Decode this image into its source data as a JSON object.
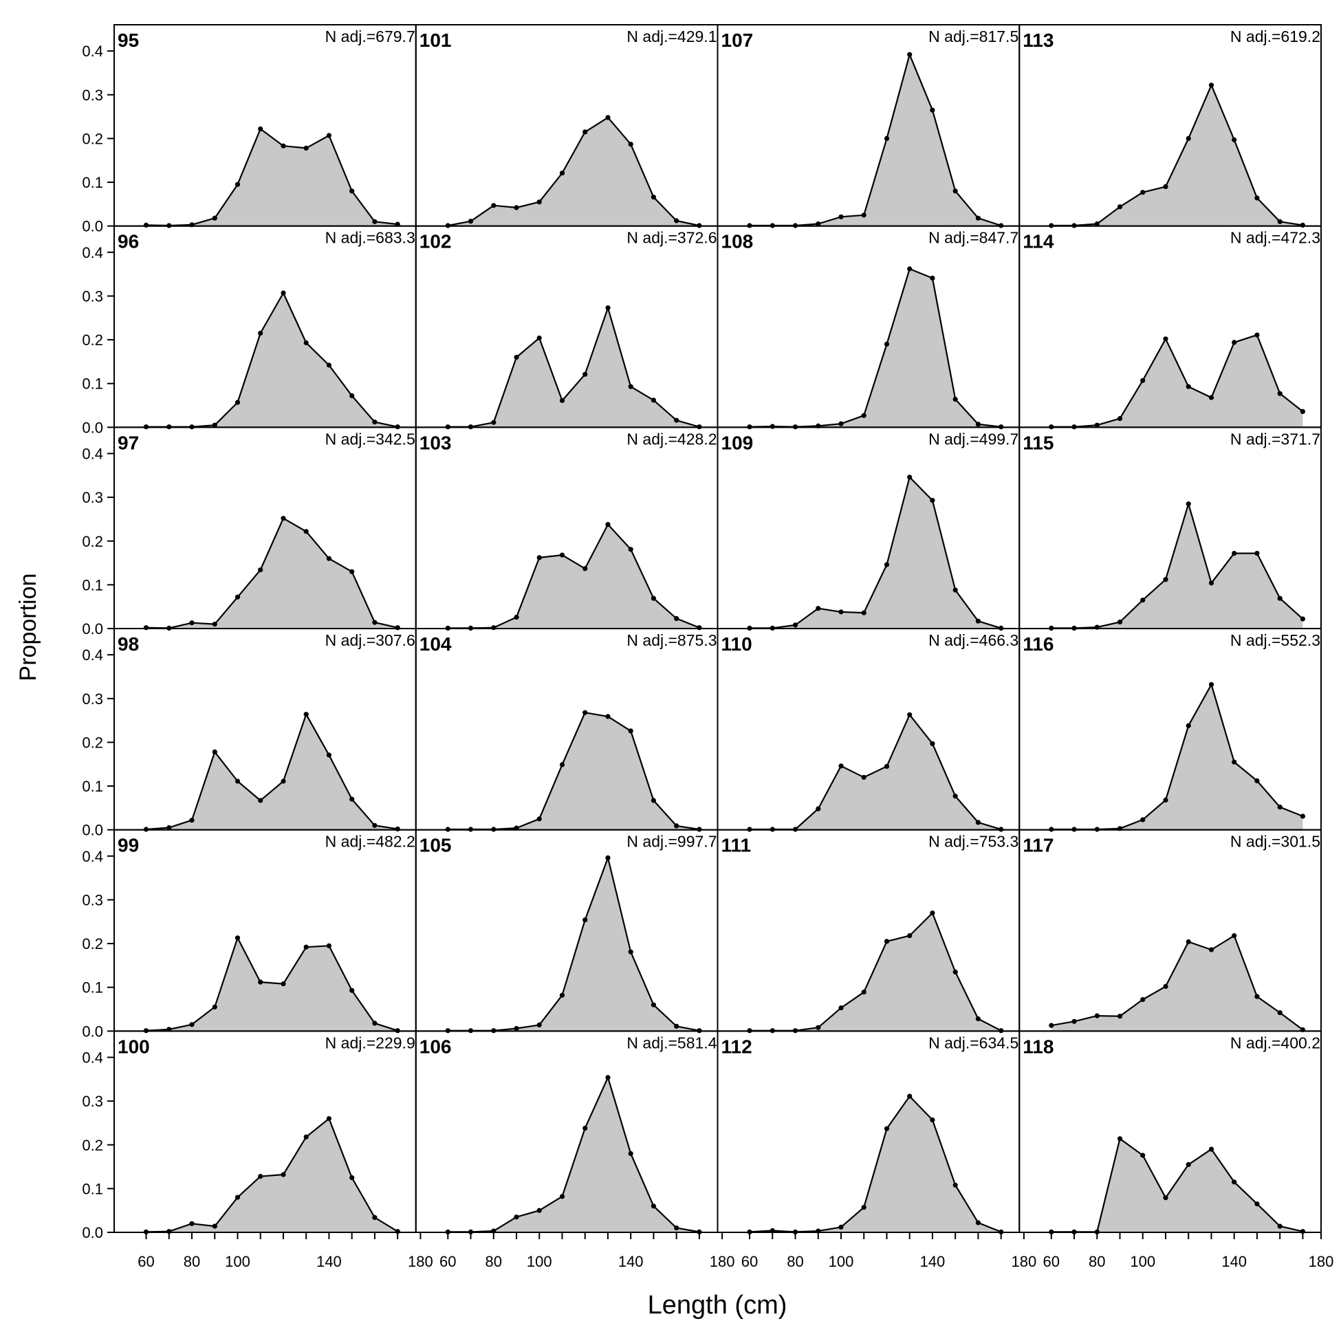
{
  "chart_data": {
    "type": "area",
    "xlabel": "Length (cm)",
    "ylabel": "Proportion",
    "xlim": [
      46,
      178
    ],
    "ylim": [
      0,
      0.46
    ],
    "x": [
      60,
      70,
      80,
      90,
      100,
      110,
      120,
      130,
      140,
      150,
      160,
      170
    ],
    "x_ticks": [
      60,
      80,
      100,
      140,
      180
    ],
    "x_tick_labels": {
      "col0": [
        "60",
        "80",
        "100",
        "140",
        "180"
      ],
      "col1": [
        "60",
        "80",
        "100",
        "140",
        "180"
      ],
      "col2": [
        "60",
        "80",
        "100",
        "140",
        "180"
      ],
      "col3": [
        "60",
        "80",
        "100",
        "140",
        "180"
      ]
    },
    "y_ticks": [
      0.0,
      0.1,
      0.2,
      0.3,
      0.4
    ],
    "y_tick_labels": [
      "0.0",
      "0.1",
      "0.2",
      "0.3",
      "0.4"
    ],
    "fill_color": "#c8c8c8",
    "line_color": "#000000",
    "layout": {
      "rows": 6,
      "cols": 4,
      "order": "column-major"
    },
    "panels": [
      {
        "title": "95",
        "n_label": "N adj.=679.7",
        "values": [
          0.002,
          0.001,
          0.003,
          0.018,
          0.095,
          0.222,
          0.183,
          0.178,
          0.207,
          0.08,
          0.01,
          0.004
        ]
      },
      {
        "title": "96",
        "n_label": "N adj.=683.3",
        "values": [
          0.001,
          0.001,
          0.001,
          0.005,
          0.057,
          0.215,
          0.307,
          0.193,
          0.142,
          0.072,
          0.012,
          0.001
        ]
      },
      {
        "title": "97",
        "n_label": "N adj.=342.5",
        "values": [
          0.002,
          0.001,
          0.013,
          0.01,
          0.072,
          0.134,
          0.252,
          0.222,
          0.16,
          0.13,
          0.014,
          0.002
        ]
      },
      {
        "title": "98",
        "n_label": "N adj.=307.6",
        "values": [
          0.001,
          0.005,
          0.022,
          0.178,
          0.111,
          0.067,
          0.111,
          0.264,
          0.171,
          0.07,
          0.01,
          0.002
        ]
      },
      {
        "title": "99",
        "n_label": "N adj.=482.2",
        "values": [
          0.001,
          0.004,
          0.015,
          0.055,
          0.213,
          0.112,
          0.108,
          0.192,
          0.195,
          0.093,
          0.018,
          0.001
        ]
      },
      {
        "title": "100",
        "n_label": "N adj.=229.9",
        "values": [
          0.001,
          0.002,
          0.02,
          0.014,
          0.08,
          0.128,
          0.132,
          0.218,
          0.26,
          0.125,
          0.034,
          0.002
        ]
      },
      {
        "title": "101",
        "n_label": "N adj.=429.1",
        "values": [
          0.001,
          0.011,
          0.047,
          0.042,
          0.055,
          0.121,
          0.215,
          0.248,
          0.187,
          0.066,
          0.012,
          0.001
        ]
      },
      {
        "title": "102",
        "n_label": "N adj.=372.6",
        "values": [
          0.001,
          0.001,
          0.011,
          0.16,
          0.204,
          0.061,
          0.121,
          0.273,
          0.093,
          0.062,
          0.016,
          0.001
        ]
      },
      {
        "title": "103",
        "n_label": "N adj.=428.2",
        "values": [
          0.001,
          0.001,
          0.002,
          0.026,
          0.162,
          0.168,
          0.137,
          0.238,
          0.181,
          0.069,
          0.023,
          0.002
        ]
      },
      {
        "title": "104",
        "n_label": "N adj.=875.3",
        "values": [
          0.001,
          0.001,
          0.001,
          0.004,
          0.025,
          0.149,
          0.268,
          0.259,
          0.226,
          0.067,
          0.009,
          0.001
        ]
      },
      {
        "title": "105",
        "n_label": "N adj.=997.7",
        "values": [
          0.001,
          0.001,
          0.001,
          0.006,
          0.014,
          0.082,
          0.254,
          0.396,
          0.181,
          0.06,
          0.011,
          0.001
        ]
      },
      {
        "title": "106",
        "n_label": "N adj.=581.4",
        "values": [
          0.001,
          0.001,
          0.003,
          0.035,
          0.05,
          0.082,
          0.238,
          0.354,
          0.18,
          0.06,
          0.01,
          0.001
        ]
      },
      {
        "title": "107",
        "n_label": "N adj.=817.5",
        "values": [
          0.001,
          0.001,
          0.001,
          0.005,
          0.021,
          0.025,
          0.2,
          0.392,
          0.265,
          0.08,
          0.018,
          0.001
        ]
      },
      {
        "title": "108",
        "n_label": "N adj.=847.7",
        "values": [
          0.001,
          0.002,
          0.001,
          0.003,
          0.008,
          0.027,
          0.19,
          0.362,
          0.341,
          0.064,
          0.007,
          0.001
        ]
      },
      {
        "title": "109",
        "n_label": "N adj.=499.7",
        "values": [
          0.001,
          0.001,
          0.008,
          0.046,
          0.038,
          0.036,
          0.146,
          0.346,
          0.293,
          0.088,
          0.017,
          0.001
        ]
      },
      {
        "title": "110",
        "n_label": "N adj.=466.3",
        "values": [
          0.001,
          0.001,
          0.001,
          0.048,
          0.146,
          0.12,
          0.145,
          0.263,
          0.197,
          0.077,
          0.017,
          0.001
        ]
      },
      {
        "title": "111",
        "n_label": "N adj.=753.3",
        "values": [
          0.001,
          0.001,
          0.001,
          0.008,
          0.053,
          0.089,
          0.205,
          0.218,
          0.27,
          0.135,
          0.028,
          0.001
        ]
      },
      {
        "title": "112",
        "n_label": "N adj.=634.5",
        "values": [
          0.001,
          0.004,
          0.001,
          0.003,
          0.012,
          0.057,
          0.237,
          0.311,
          0.257,
          0.108,
          0.022,
          0.001
        ]
      },
      {
        "title": "113",
        "n_label": "N adj.=619.2",
        "values": [
          0.001,
          0.001,
          0.005,
          0.044,
          0.077,
          0.09,
          0.2,
          0.322,
          0.197,
          0.064,
          0.01,
          0.002
        ]
      },
      {
        "title": "114",
        "n_label": "N adj.=472.3",
        "values": [
          0.001,
          0.001,
          0.005,
          0.02,
          0.107,
          0.202,
          0.093,
          0.068,
          0.194,
          0.211,
          0.077,
          0.036
        ]
      },
      {
        "title": "115",
        "n_label": "N adj.=371.7",
        "values": [
          0.001,
          0.001,
          0.003,
          0.015,
          0.065,
          0.112,
          0.285,
          0.104,
          0.172,
          0.172,
          0.069,
          0.022
        ]
      },
      {
        "title": "116",
        "n_label": "N adj.=552.3",
        "values": [
          0.001,
          0.001,
          0.001,
          0.003,
          0.023,
          0.068,
          0.238,
          0.332,
          0.155,
          0.112,
          0.052,
          0.031
        ]
      },
      {
        "title": "117",
        "n_label": "N adj.=301.5",
        "values": [
          0.013,
          0.022,
          0.035,
          0.034,
          0.072,
          0.102,
          0.204,
          0.186,
          0.218,
          0.079,
          0.042,
          0.003
        ]
      },
      {
        "title": "118",
        "n_label": "N adj.=400.2",
        "values": [
          0.001,
          0.001,
          0.001,
          0.214,
          0.176,
          0.079,
          0.155,
          0.19,
          0.115,
          0.065,
          0.014,
          0.002
        ]
      }
    ]
  }
}
